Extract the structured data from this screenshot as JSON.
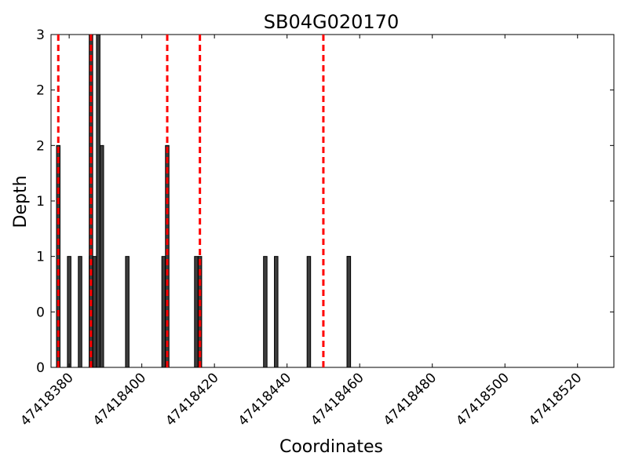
{
  "chart_data": {
    "type": "bar",
    "title": "SB04G020170",
    "xlabel": "Coordinates",
    "ylabel": "Depth",
    "xlim": [
      47418375,
      47418530
    ],
    "ylim": [
      0,
      3
    ],
    "xticks": [
      47418380,
      47418400,
      47418420,
      47418440,
      47418460,
      47418480,
      47418500,
      47418520
    ],
    "yticks": [
      0,
      0.5,
      1,
      1.5,
      2,
      2.5,
      3
    ],
    "ytick_labels": [
      "0",
      "0",
      "1",
      "1",
      "2",
      "2",
      "3"
    ],
    "bar_color": "#3d3d3d",
    "marker_color": "#ff0000",
    "grid": false,
    "bars": [
      {
        "x": 47418377,
        "depth": 2
      },
      {
        "x": 47418380,
        "depth": 1
      },
      {
        "x": 47418383,
        "depth": 1
      },
      {
        "x": 47418386,
        "depth": 1
      },
      {
        "x": 47418386,
        "depth": 3
      },
      {
        "x": 47418387,
        "depth": 1
      },
      {
        "x": 47418388,
        "depth": 3
      },
      {
        "x": 47418389,
        "depth": 2
      },
      {
        "x": 47418396,
        "depth": 1
      },
      {
        "x": 47418406,
        "depth": 1
      },
      {
        "x": 47418407,
        "depth": 2
      },
      {
        "x": 47418415,
        "depth": 1
      },
      {
        "x": 47418416,
        "depth": 1
      },
      {
        "x": 47418434,
        "depth": 1
      },
      {
        "x": 47418437,
        "depth": 1
      },
      {
        "x": 47418446,
        "depth": 1
      },
      {
        "x": 47418457,
        "depth": 1
      },
      {
        "x": 47418457,
        "depth": 1
      }
    ],
    "marker_lines": [
      47418377,
      47418386,
      47418407,
      47418416,
      47418450
    ]
  }
}
